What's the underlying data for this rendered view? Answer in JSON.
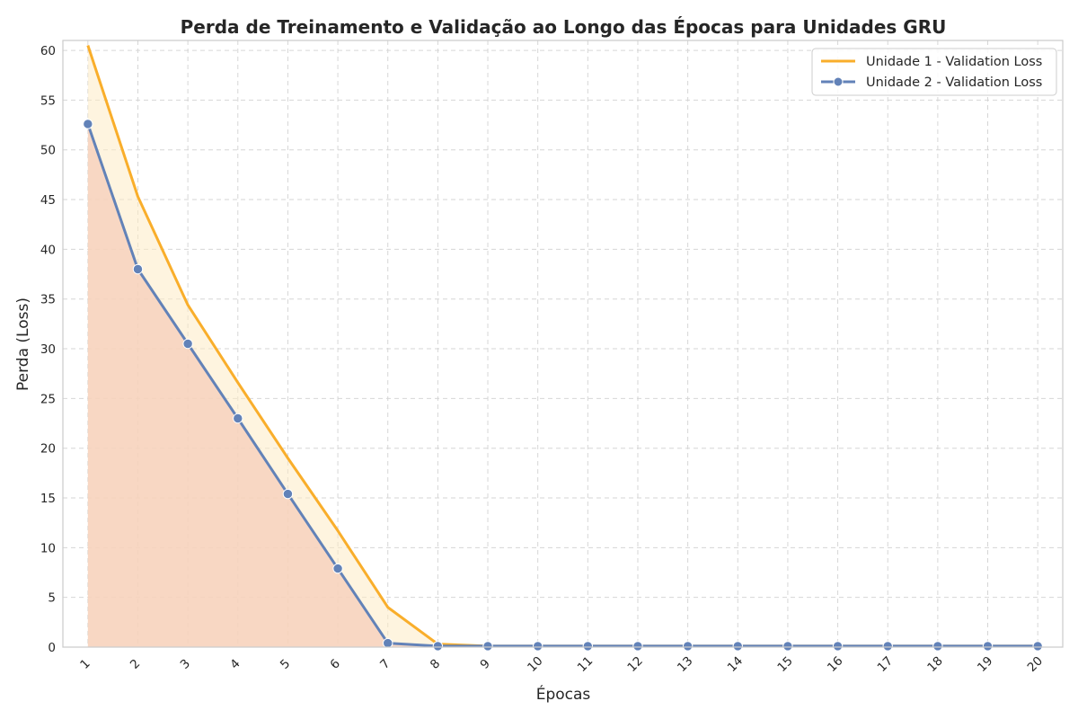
{
  "chart_data": {
    "type": "line",
    "title": "Perda de Treinamento e Validação ao Longo das Épocas para Unidades GRU",
    "xlabel": "Épocas",
    "ylabel": "Perda (Loss)",
    "x": [
      1,
      2,
      3,
      4,
      5,
      6,
      7,
      8,
      9,
      10,
      11,
      12,
      13,
      14,
      15,
      16,
      17,
      18,
      19,
      20
    ],
    "xlim": [
      0.5,
      20.5
    ],
    "ylim": [
      0,
      61
    ],
    "yticks": [
      0,
      5,
      10,
      15,
      20,
      25,
      30,
      35,
      40,
      45,
      50,
      55,
      60
    ],
    "grid": true,
    "legend_position": "top-right",
    "series": [
      {
        "name": "Unidade 1 - Validation Loss",
        "color": "#f9ae2b",
        "fill_color": "#fdebc4",
        "marker": "none",
        "values": [
          60.5,
          45.3,
          34.4,
          26.6,
          19.0,
          11.7,
          4.0,
          0.3,
          0.1,
          0.1,
          0.1,
          0.1,
          0.1,
          0.1,
          0.1,
          0.1,
          0.1,
          0.1,
          0.1,
          0.1
        ]
      },
      {
        "name": "Unidade 2 - Validation Loss",
        "color": "#6282b8",
        "fill_color": "#f5cdb9",
        "marker": "circle",
        "values": [
          52.6,
          38.0,
          30.5,
          23.0,
          15.4,
          7.9,
          0.4,
          0.1,
          0.1,
          0.1,
          0.1,
          0.1,
          0.1,
          0.1,
          0.1,
          0.1,
          0.1,
          0.1,
          0.1,
          0.1
        ]
      }
    ]
  }
}
